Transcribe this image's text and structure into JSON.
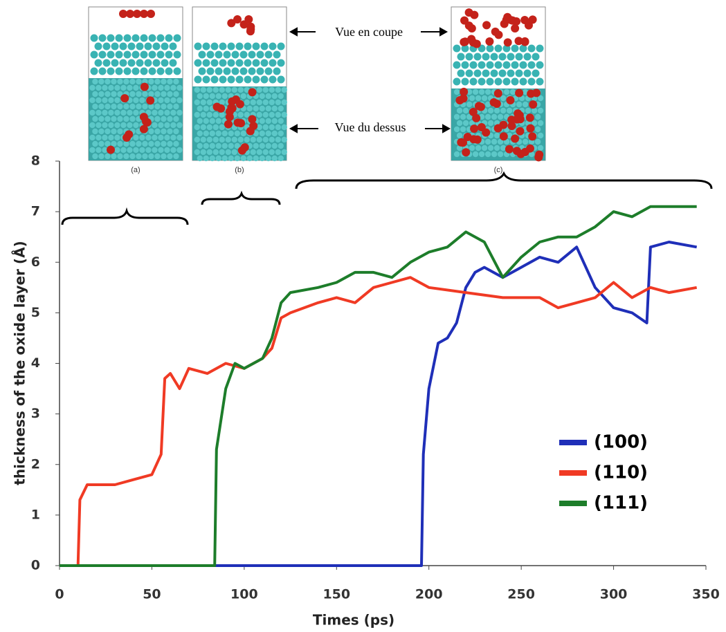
{
  "chart_data": {
    "type": "line",
    "xlabel": "Times (ps)",
    "ylabel": "thickness of the oxide layer  (Å)",
    "annotations": {
      "panel_a": "(a)",
      "panel_b": "(b)",
      "panel_c": "(c)",
      "cross_section": "Vue en coupe",
      "top_view": "Vue du dessus"
    },
    "xlim": [
      0,
      350
    ],
    "xticks": [
      0,
      50,
      100,
      150,
      200,
      250,
      300,
      350
    ],
    "ylim": [
      0,
      8
    ],
    "yticks": [
      0,
      1,
      2,
      3,
      4,
      5,
      6,
      7,
      8
    ],
    "legend": "lower right",
    "series": [
      {
        "name": "(100)",
        "color": "#1f2fb8",
        "x": [
          0,
          196,
          197,
          200,
          205,
          210,
          215,
          220,
          225,
          230,
          240,
          250,
          260,
          270,
          280,
          290,
          300,
          310,
          318,
          320,
          330,
          345
        ],
        "values": [
          0,
          0,
          2.2,
          3.5,
          4.4,
          4.5,
          4.8,
          5.5,
          5.8,
          5.9,
          5.7,
          5.9,
          6.1,
          6.0,
          6.3,
          5.5,
          5.1,
          5.0,
          4.8,
          6.3,
          6.4,
          6.3
        ]
      },
      {
        "name": "(110)",
        "color": "#f03a24",
        "x": [
          0,
          10,
          11,
          15,
          20,
          30,
          40,
          50,
          55,
          57,
          60,
          65,
          70,
          80,
          90,
          100,
          110,
          115,
          120,
          125,
          140,
          150,
          160,
          170,
          180,
          190,
          200,
          220,
          240,
          260,
          270,
          280,
          290,
          300,
          310,
          320,
          330,
          345
        ],
        "values": [
          0,
          0,
          1.3,
          1.6,
          1.6,
          1.6,
          1.7,
          1.8,
          2.2,
          3.7,
          3.8,
          3.5,
          3.9,
          3.8,
          4.0,
          3.9,
          4.1,
          4.3,
          4.9,
          5.0,
          5.2,
          5.3,
          5.2,
          5.5,
          5.6,
          5.7,
          5.5,
          5.4,
          5.3,
          5.3,
          5.1,
          5.2,
          5.3,
          5.6,
          5.3,
          5.5,
          5.4,
          5.5
        ]
      },
      {
        "name": "(111)",
        "color": "#1d7d2a",
        "x": [
          0,
          84,
          85,
          90,
          95,
          100,
          110,
          115,
          120,
          125,
          140,
          150,
          160,
          170,
          180,
          190,
          200,
          210,
          220,
          230,
          240,
          250,
          260,
          270,
          280,
          290,
          300,
          310,
          320,
          330,
          345
        ],
        "values": [
          0,
          0,
          2.3,
          3.5,
          4.0,
          3.9,
          4.1,
          4.5,
          5.2,
          5.4,
          5.5,
          5.6,
          5.8,
          5.8,
          5.7,
          6.0,
          6.2,
          6.3,
          6.6,
          6.4,
          5.7,
          6.1,
          6.4,
          6.5,
          6.5,
          6.7,
          7.0,
          6.9,
          7.1,
          7.1,
          7.1
        ]
      }
    ]
  }
}
